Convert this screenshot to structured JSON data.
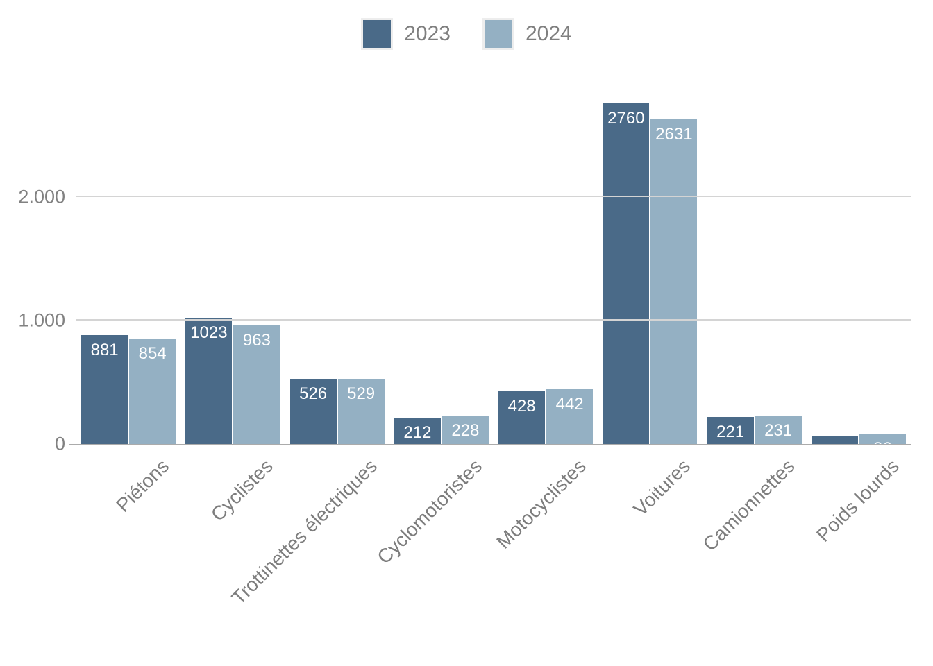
{
  "chart_data": {
    "type": "bar",
    "title": "",
    "categories": [
      "Piétons",
      "Cyclistes",
      "Trottinettes électriques",
      "Cyclomotoristes",
      "Motocyclistes",
      "Voitures",
      "Camionnettes",
      "Poids lourds"
    ],
    "series": [
      {
        "name": "2023",
        "color": "#4a6a88",
        "values": [
          881,
          1023,
          526,
          212,
          428,
          2760,
          221,
          65
        ]
      },
      {
        "name": "2024",
        "color": "#94b0c3",
        "values": [
          854,
          963,
          529,
          228,
          442,
          2631,
          231,
          86
        ]
      }
    ],
    "value_labels": {
      "position": "inside-top",
      "color": "#ffffff",
      "clipped_to_plot": true
    },
    "ylim": [
      0,
      3000
    ],
    "yticks": [
      {
        "value": 0,
        "label": "0"
      },
      {
        "value": 1000,
        "label": "1.000"
      },
      {
        "value": 2000,
        "label": "2.000"
      }
    ],
    "grid": true,
    "legend_position": "top-center",
    "x_label_rotation_deg": -45
  },
  "legend": {
    "items": [
      {
        "label": "2023",
        "color": "#4a6a88"
      },
      {
        "label": "2024",
        "color": "#94b0c3"
      }
    ]
  },
  "axis_colors": {
    "grid": "#d4d4d4",
    "baseline": "#ababab",
    "tick_text": "#818181",
    "category_text": "#7d7d7d"
  }
}
